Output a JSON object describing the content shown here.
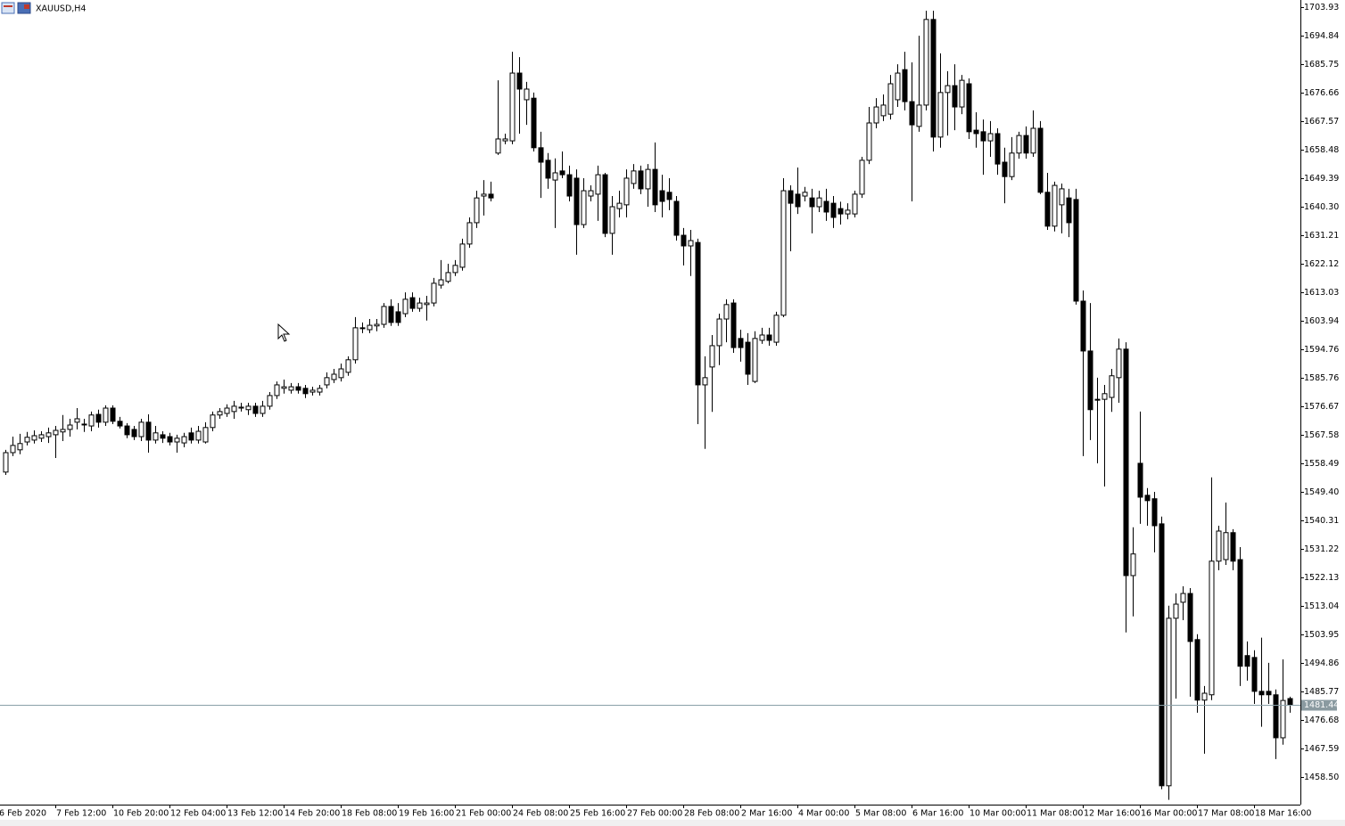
{
  "chart_data": {
    "type": "candlestick",
    "title": "XAUUSD,H4",
    "up_color": "#ffffff",
    "down_color": "#000000",
    "grid": false,
    "categories": [
      "6 Feb 2020",
      null,
      null,
      null,
      null,
      null,
      null,
      null,
      "7 Feb 12:00",
      null,
      null,
      null,
      null,
      null,
      null,
      null,
      "10 Feb 20:00",
      null,
      null,
      null,
      null,
      null,
      null,
      null,
      "12 Feb 04:00",
      null,
      null,
      null,
      null,
      null,
      null,
      null,
      "13 Feb 12:00",
      null,
      null,
      null,
      null,
      null,
      null,
      null,
      "14 Feb 20:00",
      null,
      null,
      null,
      null,
      null,
      null,
      null,
      "18 Feb 08:00",
      null,
      null,
      null,
      null,
      null,
      null,
      null,
      "19 Feb 16:00",
      null,
      null,
      null,
      null,
      null,
      null,
      null,
      "21 Feb 00:00",
      null,
      null,
      null,
      null,
      null,
      null,
      null,
      "24 Feb 08:00",
      null,
      null,
      null,
      null,
      null,
      null,
      null,
      "25 Feb 16:00",
      null,
      null,
      null,
      null,
      null,
      null,
      null,
      "27 Feb 00:00",
      null,
      null,
      null,
      null,
      null,
      null,
      null,
      "28 Feb 08:00",
      null,
      null,
      null,
      null,
      null,
      null,
      null,
      "2 Mar 16:00",
      null,
      null,
      null,
      null,
      null,
      null,
      null,
      "4 Mar 00:00",
      null,
      null,
      null,
      null,
      null,
      null,
      null,
      "5 Mar 08:00",
      null,
      null,
      null,
      null,
      null,
      null,
      null,
      "6 Mar 16:00",
      null,
      null,
      null,
      null,
      null,
      null,
      null,
      "10 Mar 00:00",
      null,
      null,
      null,
      null,
      null,
      null,
      null,
      "11 Mar 08:00",
      null,
      null,
      null,
      null,
      null,
      null,
      null,
      "12 Mar 16:00",
      null,
      null,
      null,
      null,
      null,
      null,
      null,
      "16 Mar 00:00",
      null,
      null,
      null,
      null,
      null,
      null,
      null,
      "17 Mar 08:00",
      null,
      null,
      null,
      null,
      null,
      null,
      null,
      "18 Mar 16:00",
      null,
      null,
      null,
      null
    ],
    "open": [
      1555.7,
      1561.9,
      1562.8,
      1565.3,
      1565.9,
      1566.5,
      1567.0,
      1567.6,
      1568.5,
      1569.3,
      1571.6,
      1571.0,
      1570.4,
      1574.1,
      1571.6,
      1576.1,
      1571.9,
      1570.4,
      1569.3,
      1567.0,
      1571.6,
      1565.9,
      1567.6,
      1567.0,
      1565.3,
      1565.0,
      1568.2,
      1565.9,
      1565.3,
      1569.9,
      1573.9,
      1574.4,
      1575.0,
      1576.1,
      1575.6,
      1576.7,
      1574.4,
      1576.7,
      1580.1,
      1582.4,
      1581.8,
      1582.9,
      1582.4,
      1581.2,
      1581.2,
      1583.5,
      1585.2,
      1585.8,
      1587.5,
      1591.5,
      1601.7,
      1601.1,
      1602.3,
      1602.8,
      1608.5,
      1606.8,
      1606.2,
      1611.3,
      1607.9,
      1609.1,
      1609.6,
      1615.3,
      1616.5,
      1619.3,
      1621.0,
      1628.4,
      1635.2,
      1643.7,
      1644.3,
      1657.4,
      1661.3,
      1661.3,
      1682.9,
      1674.4,
      1674.9,
      1659.1,
      1655.1,
      1648.8,
      1651.7,
      1650.5,
      1649.4,
      1634.6,
      1643.7,
      1644.3,
      1650.5,
      1631.8,
      1639.7,
      1640.9,
      1647.7,
      1651.7,
      1646.0,
      1652.2,
      1645.4,
      1644.9,
      1642.0,
      1631.2,
      1627.8,
      1628.9,
      1583.5,
      1589.2,
      1596.0,
      1604.5,
      1609.6,
      1598.3,
      1597.1,
      1584.6,
      1597.7,
      1599.4,
      1597.1,
      1605.7,
      1645.4,
      1644.3,
      1643.7,
      1643.1,
      1640.3,
      1642.0,
      1641.4,
      1639.7,
      1638.0,
      1638.0,
      1644.3,
      1655.1,
      1667.0,
      1669.3,
      1669.8,
      1674.4,
      1684.0,
      1673.8,
      1665.9,
      1672.7,
      1700.0,
      1662.5,
      1676.7,
      1678.9,
      1672.1,
      1679.5,
      1664.7,
      1664.2,
      1661.3,
      1663.6,
      1654.5,
      1649.9,
      1657.4,
      1663.0,
      1657.4,
      1665.3,
      1644.9,
      1634.1,
      1640.9,
      1643.1,
      1642.6,
      1610.2,
      1594.3,
      1578.9,
      1578.9,
      1579.5,
      1585.8,
      1594.9,
      1522.7,
      1558.5,
      1548.3,
      1547.2,
      1539.2,
      1455.7,
      1509.1,
      1514.2,
      1517.0,
      1502.3,
      1483.0,
      1484.7,
      1527.3,
      1527.8,
      1536.4,
      1527.8,
      1497.2,
      1496.6,
      1485.8,
      1485.8,
      1484.7,
      1471.0,
      1483.5
    ],
    "high": [
      1562.8,
      1567.0,
      1567.9,
      1568.5,
      1569.0,
      1568.7,
      1569.9,
      1570.4,
      1573.9,
      1572.7,
      1576.1,
      1572.7,
      1575.0,
      1575.6,
      1577.0,
      1577.0,
      1573.3,
      1571.3,
      1570.4,
      1572.7,
      1574.1,
      1570.4,
      1568.7,
      1568.2,
      1567.6,
      1568.2,
      1569.9,
      1570.4,
      1571.6,
      1575.0,
      1576.1,
      1577.3,
      1578.4,
      1577.8,
      1577.8,
      1577.8,
      1578.4,
      1581.2,
      1584.6,
      1585.2,
      1584.1,
      1584.1,
      1583.5,
      1582.9,
      1583.5,
      1587.5,
      1588.6,
      1590.3,
      1592.6,
      1605.1,
      1603.4,
      1604.5,
      1604.5,
      1609.6,
      1610.8,
      1609.6,
      1613.0,
      1613.0,
      1611.3,
      1611.9,
      1617.6,
      1623.3,
      1622.1,
      1623.3,
      1630.1,
      1636.9,
      1645.4,
      1648.8,
      1648.3,
      1680.6,
      1663.6,
      1689.7,
      1688.0,
      1680.1,
      1676.7,
      1664.2,
      1657.4,
      1655.7,
      1657.9,
      1653.4,
      1652.2,
      1649.4,
      1647.1,
      1653.4,
      1651.1,
      1643.7,
      1645.4,
      1652.2,
      1653.9,
      1653.4,
      1653.9,
      1660.8,
      1650.5,
      1649.4,
      1643.7,
      1633.5,
      1632.9,
      1630.1,
      1592.6,
      1599.4,
      1606.2,
      1610.8,
      1610.8,
      1601.1,
      1600.0,
      1600.6,
      1601.7,
      1601.7,
      1606.8,
      1649.4,
      1647.1,
      1652.8,
      1646.6,
      1646.0,
      1645.4,
      1646.0,
      1643.7,
      1641.9,
      1641.4,
      1645.4,
      1656.2,
      1672.1,
      1674.9,
      1676.1,
      1682.3,
      1685.7,
      1689.7,
      1686.3,
      1694.8,
      1702.8,
      1702.8,
      1689.2,
      1683.5,
      1685.7,
      1682.3,
      1681.2,
      1670.4,
      1668.1,
      1667.6,
      1665.3,
      1659.1,
      1662.5,
      1664.2,
      1665.9,
      1671.0,
      1667.6,
      1651.1,
      1648.3,
      1647.7,
      1646.0,
      1646.0,
      1613.6,
      1609.6,
      1585.8,
      1583.5,
      1588.6,
      1598.3,
      1597.1,
      1538.1,
      1575.0,
      1550.6,
      1549.4,
      1541.5,
      1513.1,
      1517.0,
      1519.3,
      1518.7,
      1504.0,
      1487.5,
      1554.0,
      1538.6,
      1546.0,
      1537.5,
      1531.8,
      1501.7,
      1498.9,
      1502.9,
      1494.9,
      1486.4,
      1496.0,
      1484.1
    ],
    "low": [
      1554.8,
      1560.8,
      1561.4,
      1564.2,
      1564.8,
      1565.3,
      1565.0,
      1560.2,
      1565.6,
      1567.0,
      1569.3,
      1568.5,
      1568.7,
      1569.9,
      1570.4,
      1571.0,
      1569.6,
      1566.5,
      1565.9,
      1565.6,
      1561.9,
      1564.8,
      1565.0,
      1564.2,
      1561.9,
      1563.6,
      1564.8,
      1564.8,
      1564.8,
      1568.7,
      1572.7,
      1573.3,
      1572.7,
      1575.0,
      1573.9,
      1573.3,
      1573.3,
      1575.6,
      1579.0,
      1580.7,
      1580.7,
      1580.7,
      1579.3,
      1580.1,
      1580.1,
      1582.4,
      1584.1,
      1584.6,
      1586.4,
      1590.3,
      1600.0,
      1600.0,
      1600.6,
      1601.7,
      1602.3,
      1602.3,
      1605.1,
      1606.8,
      1606.8,
      1604.0,
      1608.5,
      1614.2,
      1615.9,
      1618.2,
      1619.9,
      1627.2,
      1633.5,
      1637.5,
      1642.0,
      1656.8,
      1660.2,
      1660.2,
      1663.6,
      1666.4,
      1657.9,
      1643.1,
      1646.0,
      1633.5,
      1649.4,
      1642.0,
      1625.0,
      1633.5,
      1642.0,
      1635.8,
      1630.6,
      1625.0,
      1636.9,
      1636.9,
      1646.0,
      1644.3,
      1640.3,
      1638.6,
      1636.9,
      1639.2,
      1629.5,
      1621.6,
      1618.2,
      1571.0,
      1563.1,
      1574.9,
      1589.8,
      1597.1,
      1593.7,
      1590.9,
      1583.5,
      1584.1,
      1596.6,
      1596.0,
      1596.0,
      1605.1,
      1626.1,
      1638.0,
      1642.0,
      1631.8,
      1638.6,
      1635.8,
      1633.5,
      1634.6,
      1636.3,
      1636.9,
      1643.1,
      1653.9,
      1665.3,
      1667.6,
      1668.1,
      1672.1,
      1671.0,
      1642.0,
      1664.2,
      1671.0,
      1657.9,
      1659.1,
      1663.0,
      1664.7,
      1669.8,
      1661.9,
      1659.1,
      1650.5,
      1656.2,
      1650.5,
      1641.4,
      1648.8,
      1655.6,
      1655.6,
      1656.2,
      1644.3,
      1632.9,
      1632.4,
      1631.8,
      1630.6,
      1609.1,
      1560.8,
      1565.9,
      1558.5,
      1551.1,
      1574.9,
      1577.8,
      1504.6,
      1509.7,
      1539.2,
      1538.6,
      1530.1,
      1454.6,
      1451.2,
      1483.5,
      1508.5,
      1484.1,
      1479.0,
      1465.9,
      1483.0,
      1524.4,
      1526.1,
      1524.4,
      1487.5,
      1489.2,
      1481.8,
      1474.5,
      1481.8,
      1464.2,
      1468.8,
      1479.0
    ],
    "close": [
      1561.9,
      1564.2,
      1564.8,
      1566.8,
      1567.3,
      1567.6,
      1568.2,
      1569.0,
      1569.3,
      1570.7,
      1572.7,
      1571.0,
      1573.9,
      1571.6,
      1576.1,
      1571.9,
      1570.4,
      1567.6,
      1567.0,
      1571.6,
      1565.9,
      1568.2,
      1566.5,
      1565.3,
      1566.5,
      1567.0,
      1565.9,
      1568.7,
      1569.9,
      1573.9,
      1575.0,
      1576.1,
      1576.7,
      1576.4,
      1576.7,
      1574.4,
      1576.7,
      1580.1,
      1583.5,
      1582.9,
      1582.9,
      1581.8,
      1580.7,
      1581.8,
      1582.4,
      1585.8,
      1586.9,
      1588.6,
      1591.5,
      1601.7,
      1601.7,
      1602.5,
      1602.8,
      1608.5,
      1603.4,
      1603.4,
      1610.8,
      1607.9,
      1609.6,
      1609.6,
      1615.9,
      1617.0,
      1619.3,
      1621.6,
      1628.4,
      1635.2,
      1643.1,
      1644.3,
      1643.1,
      1661.9,
      1661.9,
      1682.9,
      1677.8,
      1677.8,
      1659.1,
      1654.5,
      1649.4,
      1651.1,
      1650.5,
      1643.7,
      1634.6,
      1645.4,
      1645.4,
      1650.5,
      1631.8,
      1640.3,
      1641.4,
      1649.4,
      1651.7,
      1646.0,
      1652.2,
      1640.9,
      1642.0,
      1642.6,
      1631.2,
      1627.8,
      1629.5,
      1583.5,
      1585.8,
      1596.0,
      1604.5,
      1609.1,
      1595.4,
      1595.4,
      1586.9,
      1598.3,
      1599.4,
      1597.7,
      1605.7,
      1645.4,
      1641.4,
      1640.3,
      1644.9,
      1640.3,
      1643.1,
      1638.6,
      1636.9,
      1638.0,
      1639.2,
      1644.3,
      1655.1,
      1667.0,
      1672.1,
      1672.7,
      1679.5,
      1682.9,
      1673.8,
      1666.4,
      1672.7,
      1700.0,
      1662.5,
      1676.7,
      1678.9,
      1672.1,
      1680.6,
      1664.2,
      1663.6,
      1661.3,
      1663.6,
      1653.9,
      1649.9,
      1657.4,
      1663.0,
      1657.4,
      1665.3,
      1644.9,
      1634.1,
      1647.1,
      1646.0,
      1635.2,
      1610.2,
      1594.3,
      1575.6,
      1578.9,
      1580.7,
      1586.4,
      1594.9,
      1522.7,
      1529.6,
      1547.7,
      1546.6,
      1538.6,
      1455.7,
      1509.1,
      1513.6,
      1517.0,
      1501.7,
      1483.0,
      1485.2,
      1527.3,
      1536.9,
      1536.4,
      1527.3,
      1493.8,
      1493.8,
      1485.8,
      1484.7,
      1484.7,
      1471.0,
      1482.9,
      1481.44
    ],
    "ylim": [
      1449.69,
      1706.2
    ],
    "yticks": [
      {
        "value": 1458.5,
        "label": "1458.50"
      },
      1467.59,
      1476.68,
      1485.77,
      1494.86,
      1503.95,
      1513.04,
      1522.13,
      1531.22,
      {
        "value": 1540.31,
        "label": "1540.31"
      },
      {
        "value": 1549.4,
        "label": "1549.40"
      },
      1558.49,
      1567.58,
      1576.67,
      1585.76,
      1594.76,
      1603.94,
      1613.03,
      1622.12,
      1631.21,
      {
        "value": 1640.3,
        "label": "1640.30"
      },
      1649.39,
      1658.48,
      1667.57,
      1676.66,
      1685.75,
      1694.84,
      1703.93
    ],
    "last_price": 1481.44
  }
}
